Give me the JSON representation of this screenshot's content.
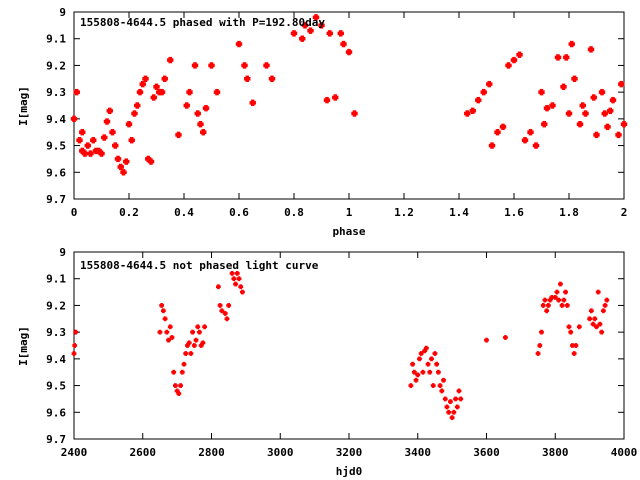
{
  "chart_data": [
    {
      "type": "scatter",
      "title": "155808-4644.5 phased with P=192.80day",
      "xlabel": "phase",
      "ylabel": "I[mag]",
      "xlim": [
        0,
        2
      ],
      "ylim": [
        9.7,
        9
      ],
      "y_inverted": true,
      "grid": false,
      "xticks": [
        "0",
        "0.2",
        "0.4",
        "0.6",
        "0.8",
        "1",
        "1.2",
        "1.4",
        "1.6",
        "1.8",
        "2"
      ],
      "yticks": [
        "9",
        "9.1",
        "9.2",
        "9.3",
        "9.4",
        "9.5",
        "9.6",
        "9.7"
      ],
      "point_color": "#ff0000",
      "series": [
        {
          "x": [
            0.0,
            0.01,
            0.02,
            0.03,
            0.03,
            0.04,
            0.05,
            0.06,
            0.07,
            0.08,
            0.09,
            0.1,
            0.11,
            0.12,
            0.13,
            0.14,
            0.15,
            0.16,
            0.17,
            0.18,
            0.19,
            0.2,
            0.21,
            0.22,
            0.23,
            0.24,
            0.25,
            0.26,
            0.27,
            0.28,
            0.29,
            0.3,
            0.31,
            0.32,
            0.33,
            0.35,
            0.38,
            0.41,
            0.42,
            0.44,
            0.45,
            0.46,
            0.47,
            0.48,
            0.5,
            0.52,
            0.6,
            0.62,
            0.63,
            0.65,
            0.7,
            0.72,
            0.8,
            0.83,
            0.84,
            0.86,
            0.88,
            0.9,
            0.92,
            0.93,
            0.95,
            0.97,
            0.98,
            1.0,
            1.02,
            1.43,
            1.45,
            1.47,
            1.49,
            1.51,
            1.52,
            1.54,
            1.56,
            1.58,
            1.6,
            1.62,
            1.64,
            1.66,
            1.68,
            1.7,
            1.71,
            1.72,
            1.74,
            1.76,
            1.78,
            1.79,
            1.8,
            1.81,
            1.82,
            1.84,
            1.85,
            1.86,
            1.88,
            1.89,
            1.9,
            1.92,
            1.93,
            1.94,
            1.95,
            1.96,
            1.98,
            1.99,
            2.0
          ],
          "y": [
            9.4,
            9.3,
            9.48,
            9.45,
            9.52,
            9.53,
            9.5,
            9.53,
            9.48,
            9.52,
            9.52,
            9.53,
            9.47,
            9.41,
            9.37,
            9.45,
            9.5,
            9.55,
            9.58,
            9.6,
            9.56,
            9.42,
            9.48,
            9.38,
            9.35,
            9.3,
            9.27,
            9.25,
            9.55,
            9.56,
            9.32,
            9.28,
            9.3,
            9.3,
            9.25,
            9.18,
            9.46,
            9.35,
            9.3,
            9.2,
            9.38,
            9.42,
            9.45,
            9.36,
            9.2,
            9.3,
            9.12,
            9.2,
            9.25,
            9.34,
            9.2,
            9.25,
            9.08,
            9.1,
            9.05,
            9.07,
            9.02,
            9.05,
            9.33,
            9.08,
            9.32,
            9.08,
            9.12,
            9.15,
            9.38,
            9.38,
            9.37,
            9.33,
            9.3,
            9.27,
            9.5,
            9.45,
            9.43,
            9.2,
            9.18,
            9.16,
            9.48,
            9.45,
            9.5,
            9.3,
            9.42,
            9.36,
            9.35,
            9.17,
            9.28,
            9.17,
            9.38,
            9.12,
            9.25,
            9.42,
            9.35,
            9.38,
            9.14,
            9.32,
            9.46,
            9.3,
            9.38,
            9.43,
            9.37,
            9.33,
            9.46,
            9.27,
            9.42
          ]
        }
      ]
    },
    {
      "type": "scatter",
      "title": "155808-4644.5 not phased light curve",
      "xlabel": "hjd0",
      "ylabel": "I[mag]",
      "xlim": [
        2400,
        4000
      ],
      "ylim": [
        9.7,
        9
      ],
      "y_inverted": true,
      "grid": false,
      "xticks": [
        "2400",
        "2600",
        "2800",
        "3000",
        "3200",
        "3400",
        "3600",
        "3800",
        "4000"
      ],
      "yticks": [
        "9",
        "9.1",
        "9.2",
        "9.3",
        "9.4",
        "9.5",
        "9.6",
        "9.7"
      ],
      "point_color": "#ff0000",
      "series": [
        {
          "x": [
            2400,
            2402,
            2405,
            2650,
            2655,
            2660,
            2665,
            2670,
            2675,
            2680,
            2685,
            2690,
            2695,
            2700,
            2705,
            2710,
            2715,
            2720,
            2725,
            2730,
            2735,
            2740,
            2745,
            2750,
            2755,
            2760,
            2765,
            2770,
            2775,
            2780,
            2820,
            2825,
            2830,
            2840,
            2845,
            2850,
            2860,
            2865,
            2870,
            2875,
            2880,
            2885,
            2890,
            3380,
            3385,
            3390,
            3395,
            3400,
            3405,
            3410,
            3415,
            3420,
            3425,
            3430,
            3435,
            3440,
            3445,
            3450,
            3455,
            3460,
            3465,
            3470,
            3475,
            3480,
            3485,
            3490,
            3495,
            3500,
            3505,
            3510,
            3515,
            3520,
            3525,
            3600,
            3655,
            3750,
            3755,
            3760,
            3765,
            3770,
            3775,
            3780,
            3785,
            3790,
            3800,
            3805,
            3810,
            3815,
            3820,
            3825,
            3830,
            3835,
            3840,
            3845,
            3850,
            3855,
            3860,
            3870,
            3900,
            3905,
            3910,
            3915,
            3920,
            3925,
            3930,
            3935,
            3940,
            3945,
            3950
          ],
          "y": [
            9.38,
            9.35,
            9.3,
            9.3,
            9.2,
            9.22,
            9.25,
            9.3,
            9.33,
            9.28,
            9.32,
            9.45,
            9.5,
            9.52,
            9.53,
            9.5,
            9.45,
            9.42,
            9.38,
            9.35,
            9.34,
            9.38,
            9.3,
            9.35,
            9.33,
            9.28,
            9.3,
            9.35,
            9.34,
            9.28,
            9.13,
            9.2,
            9.22,
            9.23,
            9.25,
            9.2,
            9.08,
            9.1,
            9.12,
            9.08,
            9.1,
            9.13,
            9.15,
            9.5,
            9.42,
            9.45,
            9.48,
            9.46,
            9.4,
            9.38,
            9.45,
            9.37,
            9.36,
            9.42,
            9.45,
            9.4,
            9.5,
            9.38,
            9.42,
            9.45,
            9.5,
            9.52,
            9.48,
            9.55,
            9.58,
            9.6,
            9.56,
            9.62,
            9.6,
            9.55,
            9.58,
            9.52,
            9.55,
            9.33,
            9.32,
            9.38,
            9.35,
            9.3,
            9.2,
            9.18,
            9.22,
            9.2,
            9.18,
            9.17,
            9.17,
            9.15,
            9.18,
            9.12,
            9.2,
            9.18,
            9.15,
            9.2,
            9.28,
            9.3,
            9.35,
            9.38,
            9.35,
            9.28,
            9.25,
            9.22,
            9.27,
            9.25,
            9.28,
            9.15,
            9.27,
            9.3,
            9.22,
            9.2,
            9.18
          ]
        }
      ]
    }
  ]
}
